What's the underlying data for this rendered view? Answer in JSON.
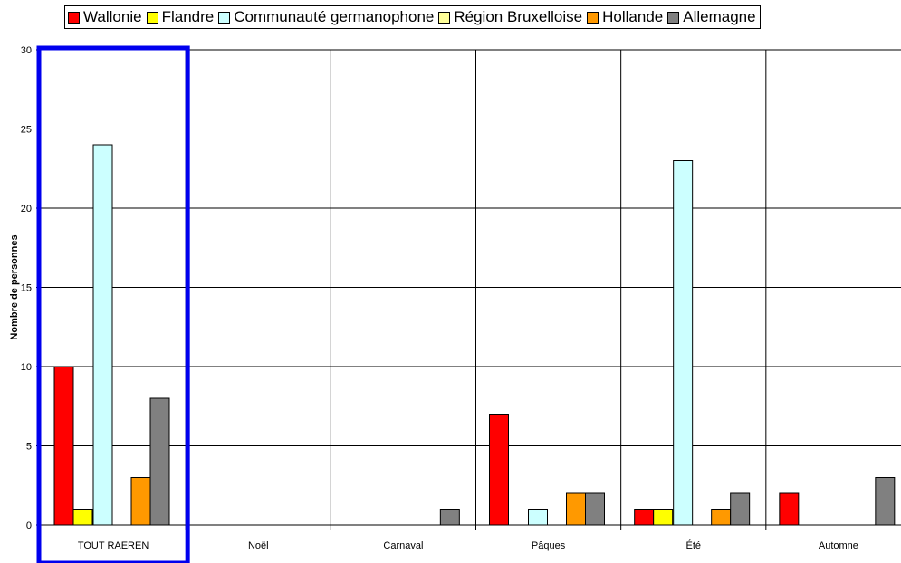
{
  "chart_data": {
    "type": "bar",
    "ylabel": "Nombre de personnes",
    "ylim": [
      0,
      30
    ],
    "yticks": [
      0,
      5,
      10,
      15,
      20,
      25,
      30
    ],
    "grid": true,
    "legend_position": "top",
    "categories": [
      "TOUT RAEREN",
      "Noël",
      "Carnaval",
      "Pâques",
      "Été",
      "Automne"
    ],
    "highlight_category": "TOUT RAEREN",
    "highlight_color": "#0000ee",
    "series": [
      {
        "name": "Wallonie",
        "color": "#ff0000",
        "values": [
          10,
          0,
          0,
          7,
          1,
          2
        ]
      },
      {
        "name": "Flandre",
        "color": "#ffff00",
        "values": [
          1,
          0,
          0,
          0,
          1,
          0
        ]
      },
      {
        "name": "Communauté germanophone",
        "color": "#ccffff",
        "values": [
          24,
          0,
          0,
          1,
          23,
          0
        ]
      },
      {
        "name": "Région Bruxelloise",
        "color": "#ffff99",
        "values": [
          0,
          0,
          0,
          0,
          0,
          0
        ]
      },
      {
        "name": "Hollande",
        "color": "#ff9900",
        "values": [
          3,
          0,
          0,
          2,
          1,
          0
        ]
      },
      {
        "name": "Allemagne",
        "color": "#808080",
        "values": [
          8,
          0,
          1,
          2,
          2,
          3
        ]
      }
    ]
  }
}
